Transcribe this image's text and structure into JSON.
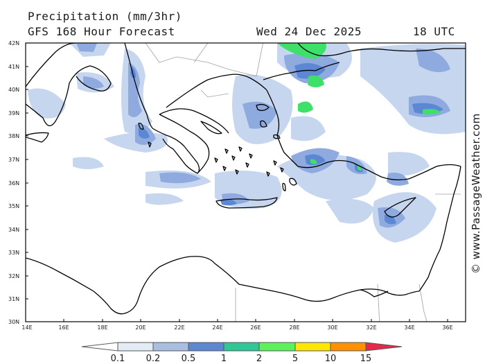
{
  "header": {
    "title": "Precipitation (mm/3hr)",
    "model": "GFS 168 Hour Forecast",
    "date": "Wed 24 Dec 2025",
    "time": "18 UTC"
  },
  "map": {
    "lat_labels": [
      "42N",
      "41N",
      "40N",
      "39N",
      "38N",
      "37N",
      "36N",
      "35N",
      "34N",
      "33N",
      "32N",
      "31N",
      "30N"
    ],
    "lon_labels": [
      "14E",
      "16E",
      "18E",
      "20E",
      "22E",
      "24E",
      "26E",
      "28E",
      "30E",
      "32E",
      "34E",
      "36E"
    ],
    "credit": "© www.PassageWeather.com"
  },
  "legend": {
    "labels": [
      "0.1",
      "0.2",
      "0.5",
      "1",
      "2",
      "5",
      "10",
      "15"
    ],
    "colors": [
      "#ffffff",
      "#e3ebf5",
      "#a9bfe1",
      "#5b87d3",
      "#2fc795",
      "#5cf25c",
      "#ffe600",
      "#ff9000",
      "#e8284a"
    ]
  },
  "colors": {
    "land_line": "#000000",
    "border_line": "#a0a0a0",
    "light_precip": "#c4d4ee",
    "medium_precip": "#8eaadf",
    "heavy_precip": "#5b87d3",
    "green_precip": "#3fe06a"
  }
}
